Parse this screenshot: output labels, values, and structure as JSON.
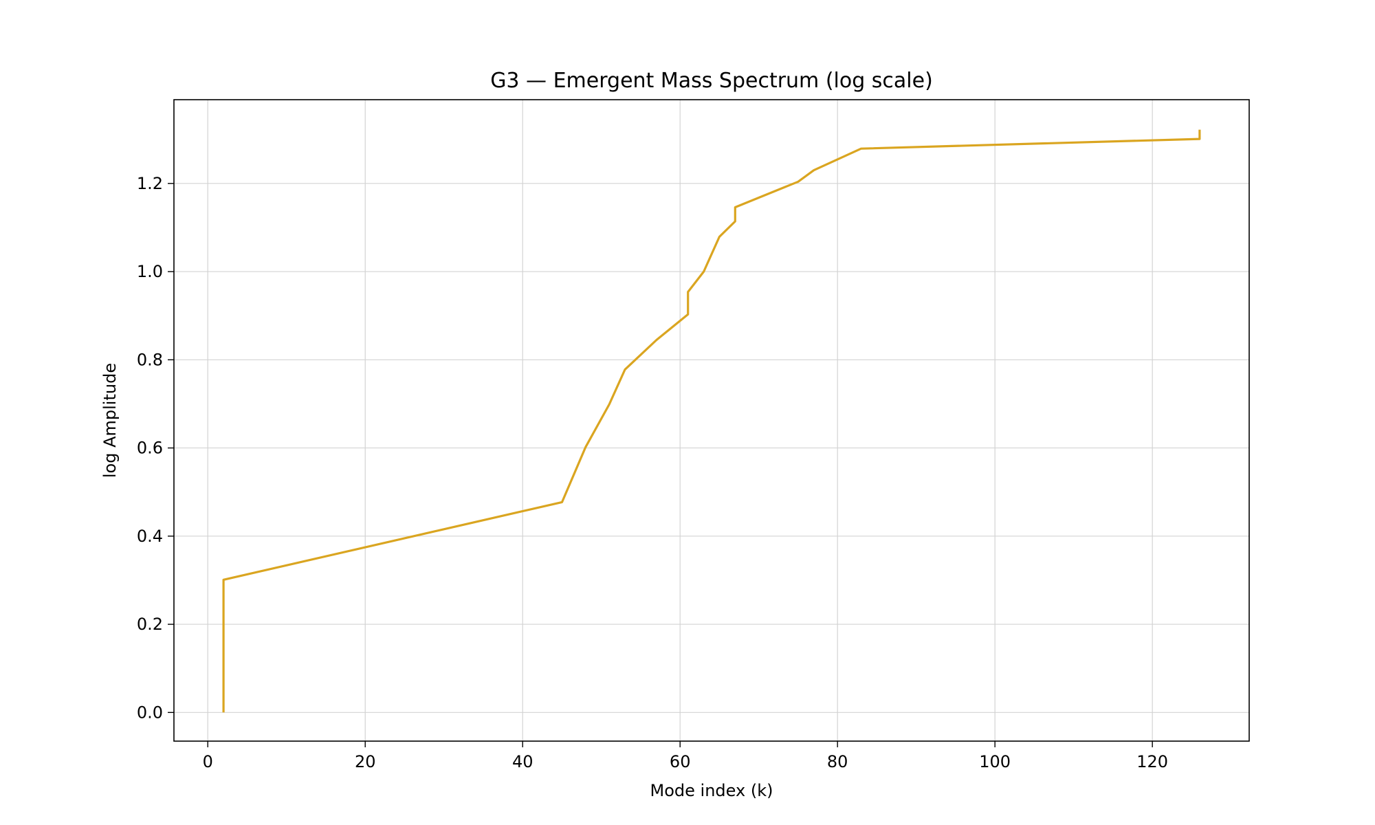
{
  "chart_data": {
    "type": "line",
    "title": "G3 — Emergent Mass Spectrum (log scale)",
    "xlabel": "Mode index (k)",
    "ylabel": "log Amplitude",
    "xlim": [
      -4.3,
      132.3
    ],
    "ylim": [
      -0.065,
      1.39
    ],
    "x_ticks": [
      0,
      20,
      40,
      60,
      80,
      100,
      120
    ],
    "y_ticks": [
      0.0,
      0.2,
      0.4,
      0.6,
      0.8,
      1.0,
      1.2
    ],
    "x_tick_labels": [
      "0",
      "20",
      "40",
      "60",
      "80",
      "100",
      "120"
    ],
    "y_tick_labels": [
      "0.0",
      "0.2",
      "0.4",
      "0.6",
      "0.8",
      "1.0",
      "1.2"
    ],
    "grid": true,
    "legend": "none",
    "series": [
      {
        "color": "#daa520",
        "x": [
          2,
          2,
          45,
          48,
          51,
          53,
          57,
          61,
          61,
          63,
          65,
          67,
          67,
          75,
          77,
          83,
          126,
          126
        ],
        "y": [
          0.0,
          0.301,
          0.477,
          0.602,
          0.699,
          0.778,
          0.845,
          0.903,
          0.954,
          1.0,
          1.079,
          1.114,
          1.146,
          1.204,
          1.23,
          1.279,
          1.301,
          1.322
        ]
      }
    ]
  }
}
